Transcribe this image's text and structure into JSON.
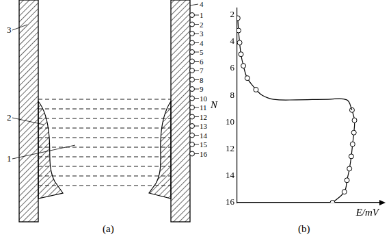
{
  "diagram": {
    "caption": "(a)",
    "labels": [
      "1",
      "2",
      "3",
      "4"
    ],
    "thermocouples": [
      1,
      2,
      3,
      4,
      5,
      6,
      7,
      8,
      9,
      10,
      11,
      12,
      13,
      14,
      15,
      16
    ]
  },
  "chart_data": {
    "type": "scatter",
    "caption": "(b)",
    "x_label": "E/mV",
    "y_label": "N",
    "xlim": [
      0,
      100
    ],
    "ylim": [
      16,
      1.5
    ],
    "yticks": [
      2,
      4,
      6,
      8,
      10,
      12,
      14,
      16
    ],
    "grid": false,
    "tick_labels": "y",
    "series": [
      {
        "color": "#000000",
        "marker": "circle",
        "line_style": "solid",
        "x": [
          0.4,
          0.9,
          1.7,
          2.6,
          4.3,
          7.0,
          13.0
        ],
        "values": [
          2.25,
          3.17,
          4.08,
          4.94,
          5.8,
          6.72,
          7.58
        ]
      },
      {
        "color": "#000000",
        "marker": "none",
        "line_style": "solid",
        "x": [
          13.0,
          17.4,
          25.2,
          41.0,
          63.0,
          76.0,
          79.6
        ],
        "values": [
          7.58,
          8.0,
          8.3,
          8.34,
          8.3,
          8.34,
          9.1
        ]
      },
      {
        "color": "#000000",
        "marker": "circle",
        "line_style": "solid",
        "x": [
          79.6,
          81.3,
          80.9,
          80.0,
          79.1,
          77.8,
          76.1,
          74.3,
          66.1
        ],
        "values": [
          9.1,
          9.86,
          10.78,
          11.64,
          12.55,
          13.47,
          14.33,
          15.19,
          16.0
        ]
      }
    ]
  }
}
